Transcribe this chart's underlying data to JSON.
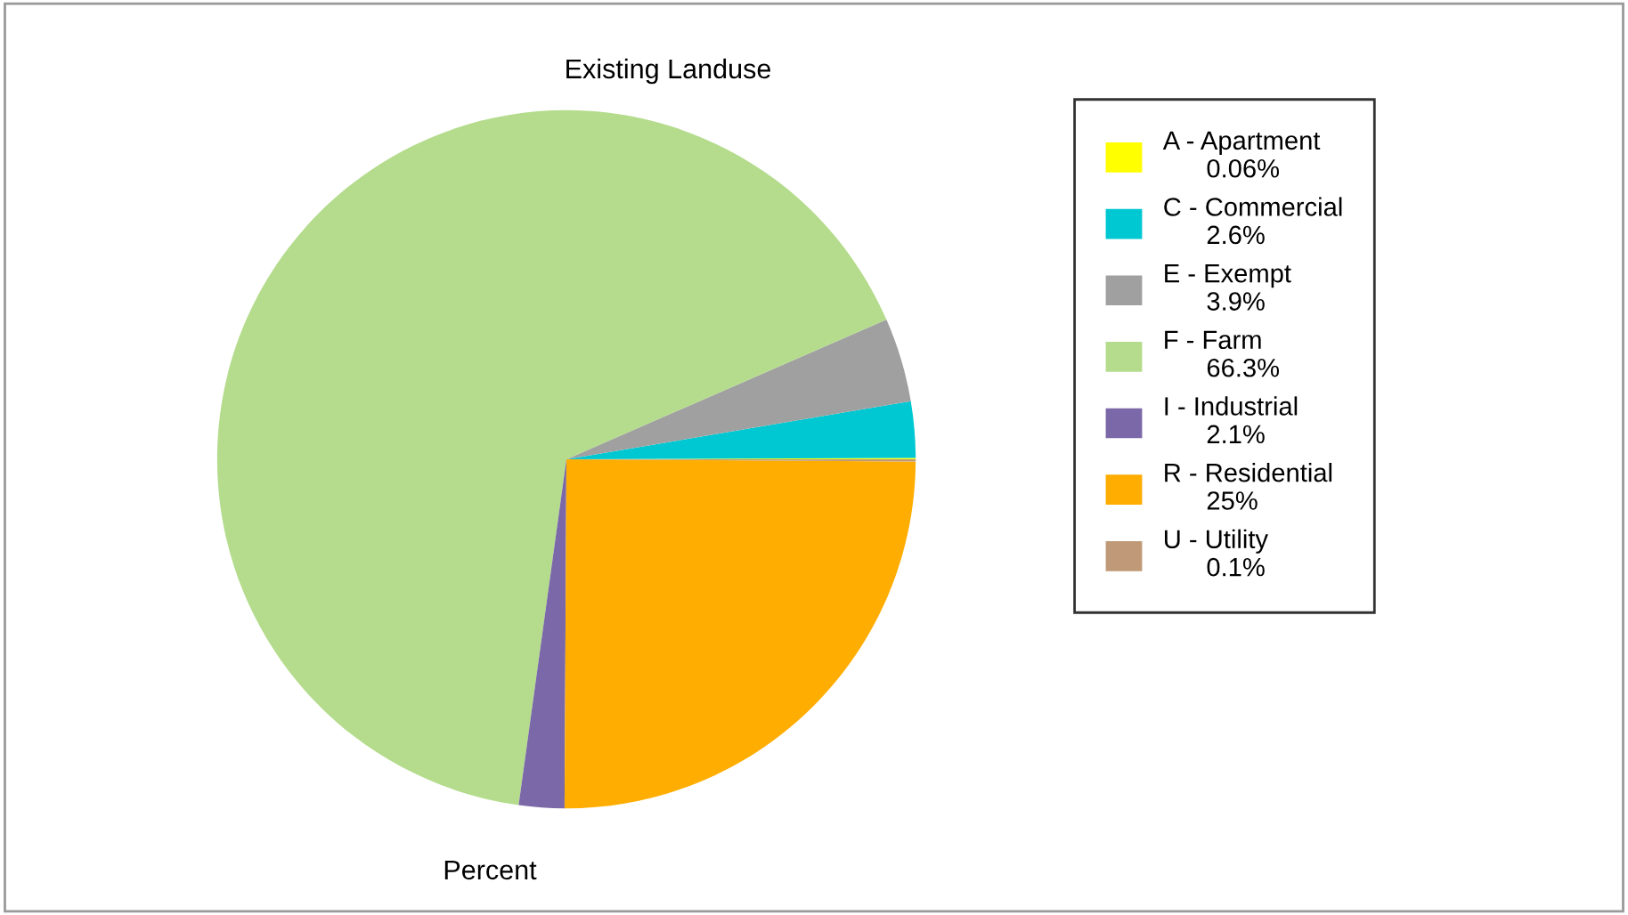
{
  "chart_data": {
    "type": "pie",
    "title": "Existing Landuse",
    "xlabel": "Percent",
    "categories": [
      "A - Apartment",
      "C - Commercial",
      "E - Exempt",
      "F - Farm",
      "I - Industrial",
      "R - Residential",
      "U - Utility"
    ],
    "values": [
      0.06,
      2.6,
      3.9,
      66.3,
      2.1,
      25,
      0.1
    ],
    "value_labels": [
      "0.06%",
      "2.6%",
      "3.9%",
      "66.3%",
      "2.1%",
      "25%",
      "0.1%"
    ],
    "colors": [
      "#ffff00",
      "#00c8d2",
      "#a0a0a0",
      "#b4dc8c",
      "#7b68a8",
      "#ffad00",
      "#c09a78"
    ],
    "legend": "right"
  }
}
